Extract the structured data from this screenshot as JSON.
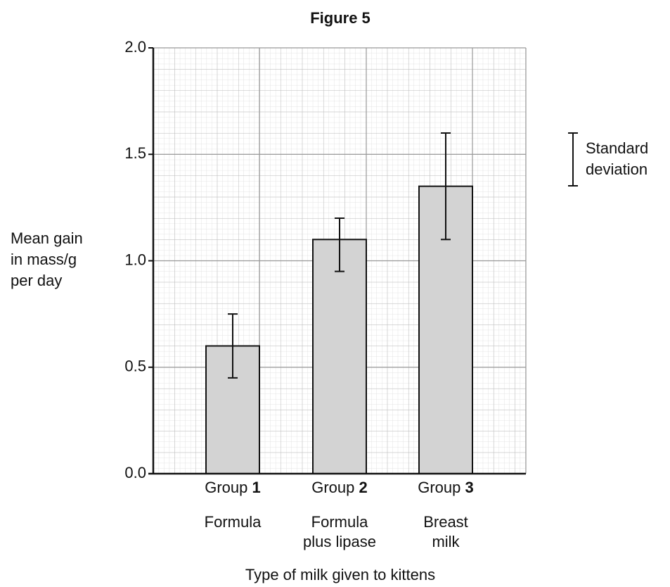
{
  "chart_data": {
    "type": "bar",
    "title": "Figure 5",
    "y_label": [
      "Mean gain",
      "in mass/g",
      "per day"
    ],
    "x_label": "Type of milk given to kittens",
    "categories": [
      {
        "group": "Group",
        "number": "1",
        "milk": [
          "Formula"
        ]
      },
      {
        "group": "Group",
        "number": "2",
        "milk": [
          "Formula",
          "plus lipase"
        ]
      },
      {
        "group": "Group",
        "number": "3",
        "milk": [
          "Breast",
          "milk"
        ]
      }
    ],
    "values": [
      0.6,
      1.1,
      1.35
    ],
    "error_upper": [
      0.15,
      0.1,
      0.25
    ],
    "error_lower": [
      0.15,
      0.15,
      0.25
    ],
    "color": "#d3d3d3",
    "legend": [
      "Standard",
      "deviation"
    ],
    "ylim": [
      0,
      2
    ],
    "yticks": [
      {
        "value": 0,
        "label": "0.0"
      },
      0.5,
      {
        "value": 1,
        "label": "1.0"
      },
      1.5,
      {
        "value": 2,
        "label": "2.0"
      }
    ],
    "grid": true
  }
}
